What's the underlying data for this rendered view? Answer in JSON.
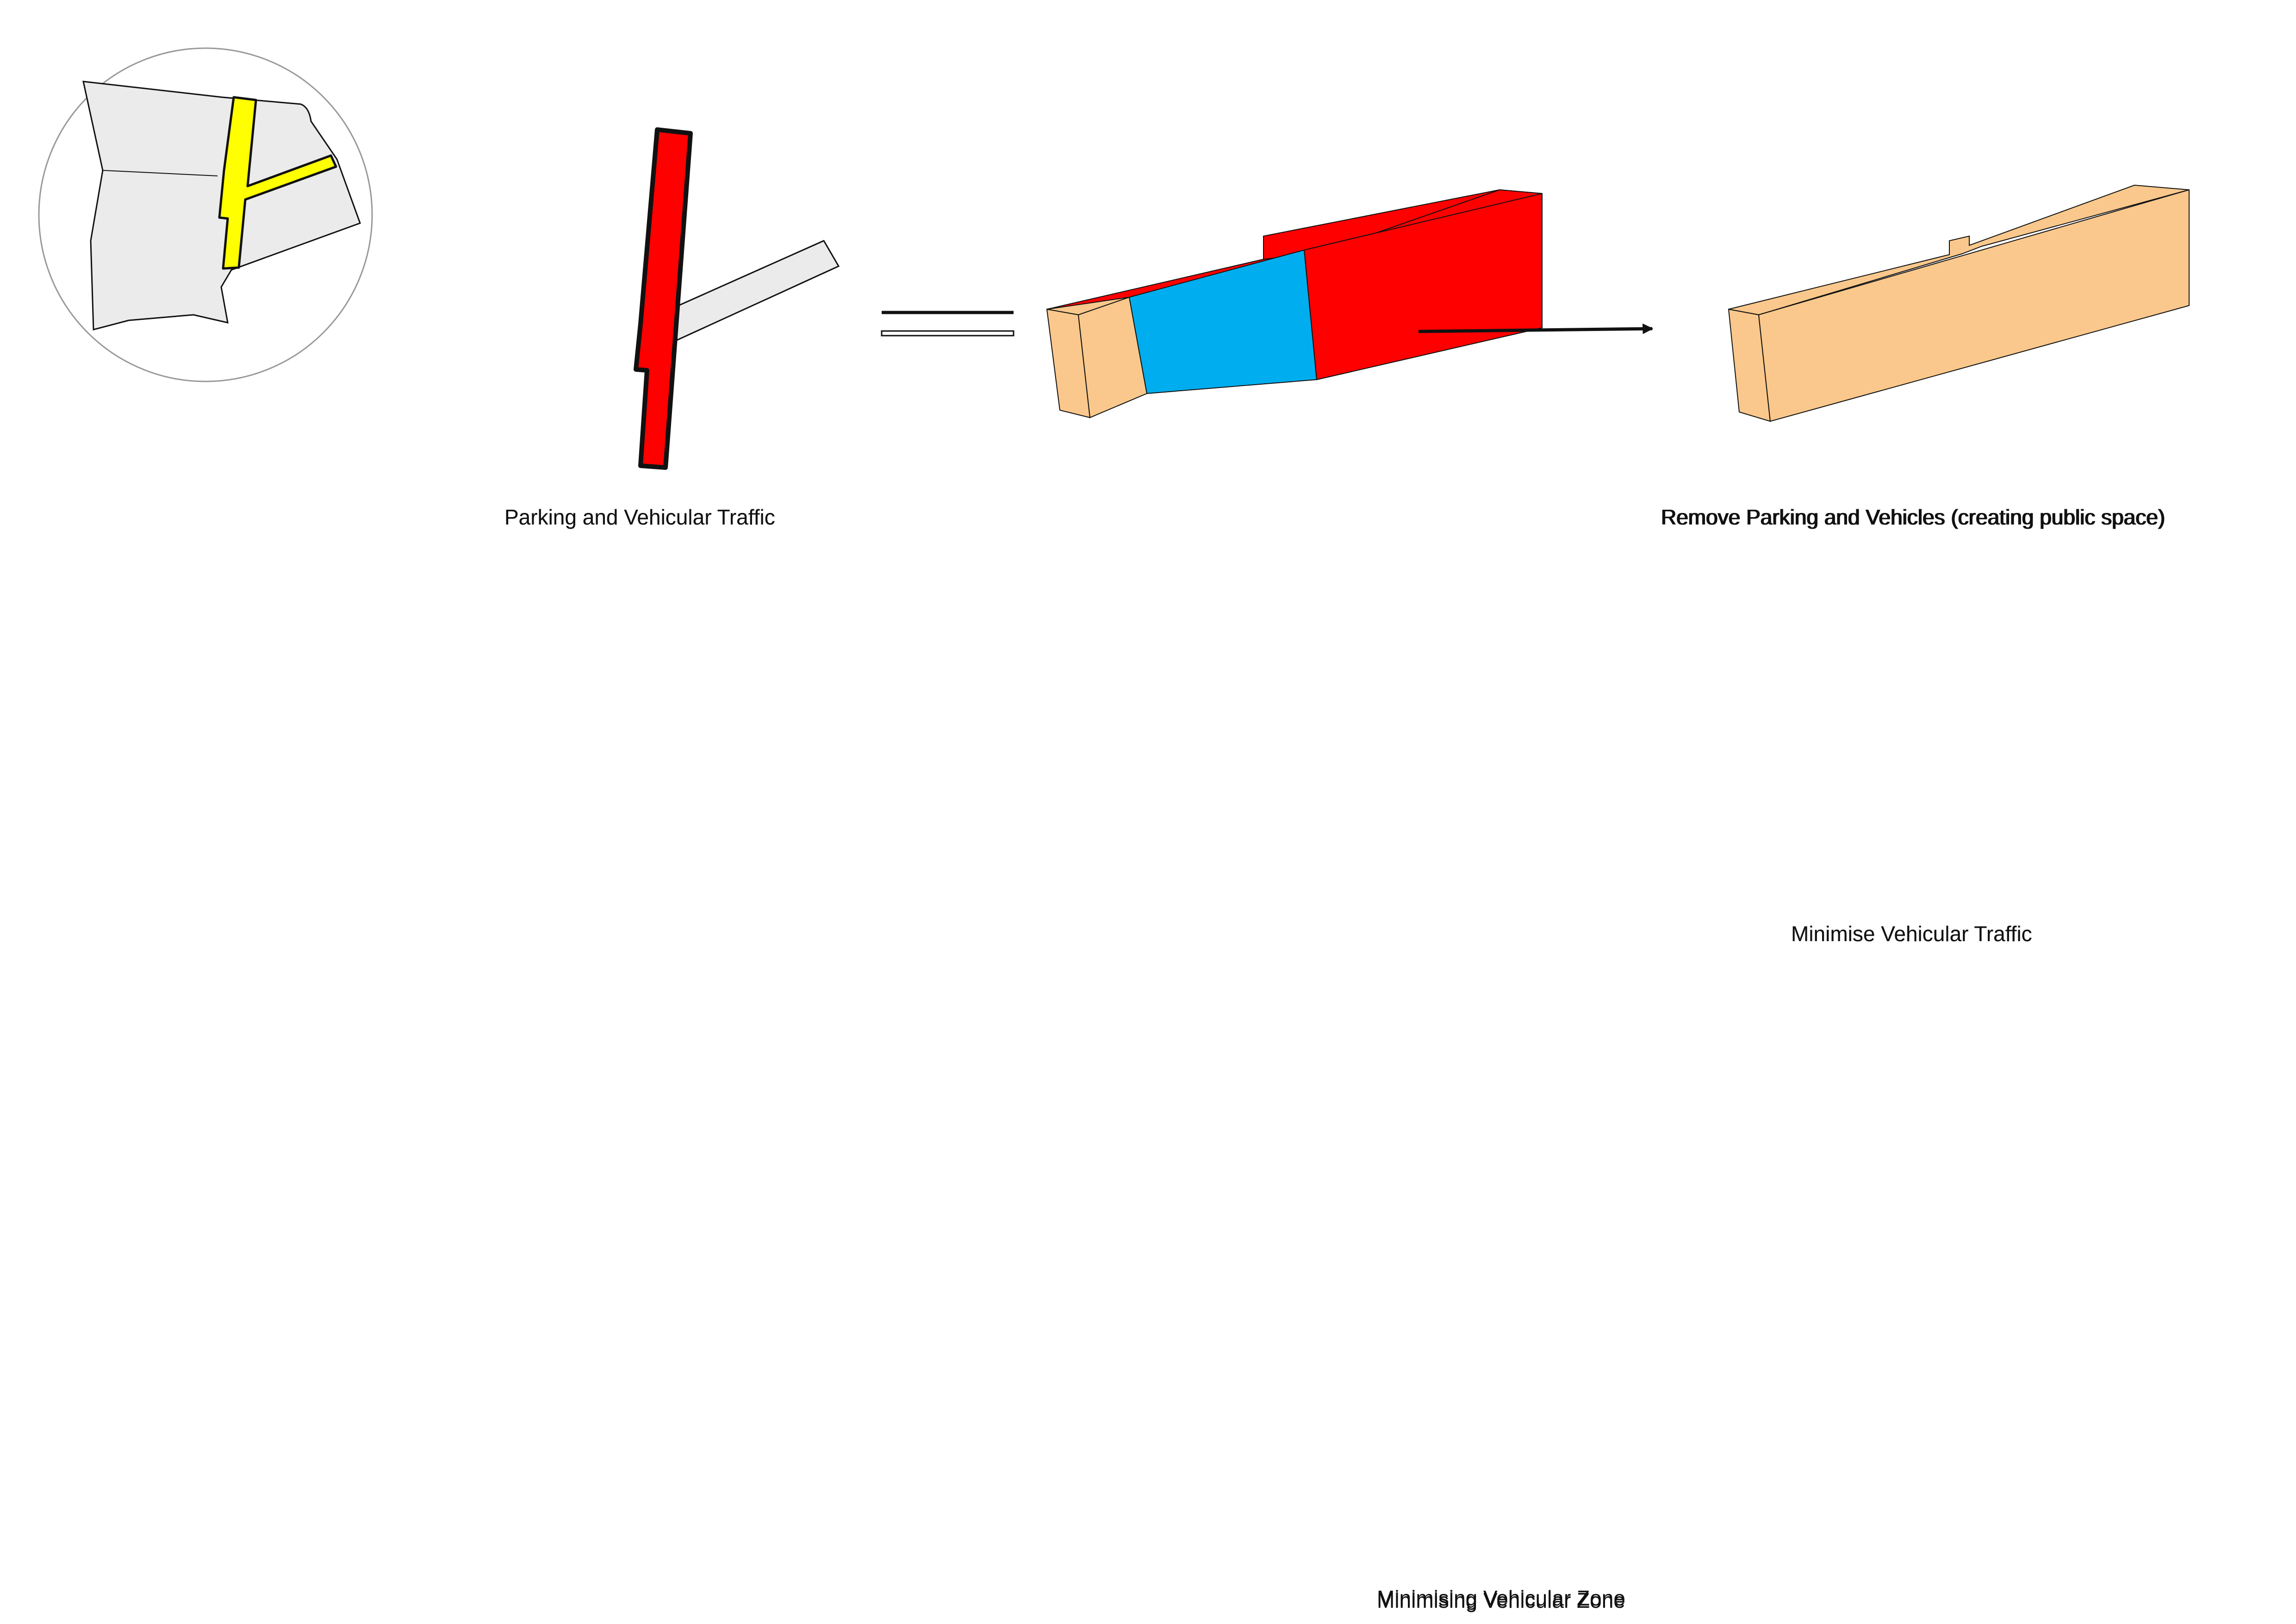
{
  "labels": {
    "parking_traffic": "Parking and Vehicular Traffic",
    "remove_parking": "Remove Parking and Vehicles (creating public space)",
    "minimise_traffic": "Minimise Vehicular Traffic",
    "minimising_zone": "Minimising Vehicular Zone"
  },
  "colors": {
    "road_highlight": "#ffff00",
    "vehicular": "#ff0000",
    "parking": "#00aeef",
    "public_space": "#fac88c",
    "site_fill": "#ebebeb",
    "outline": "#111111"
  },
  "icons": {
    "arrow": "right-arrow-icon",
    "equals": "equals-icon"
  }
}
